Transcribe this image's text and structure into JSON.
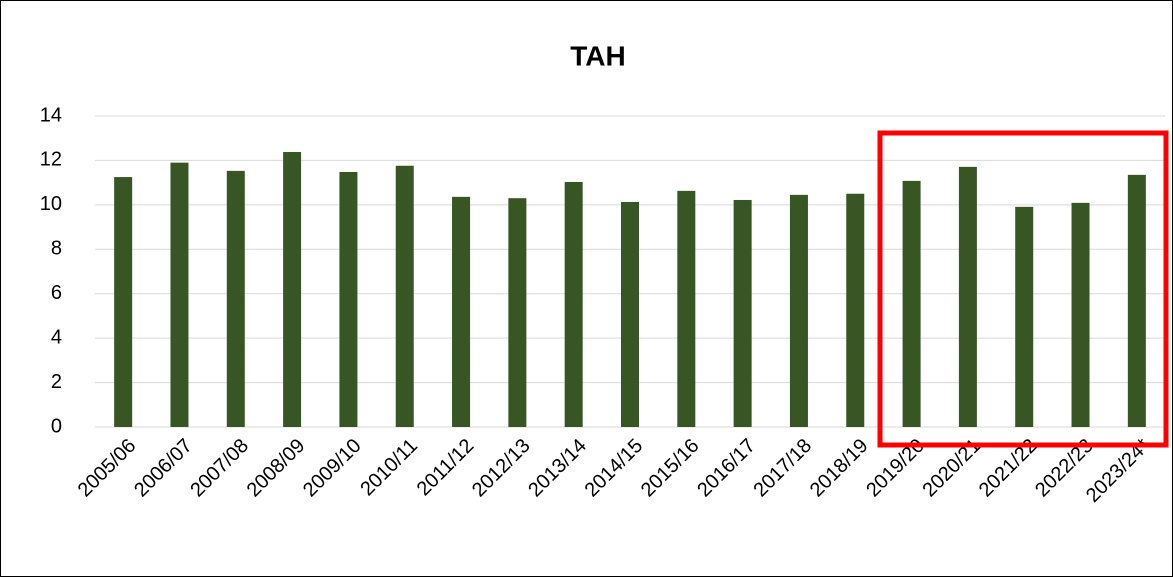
{
  "chart_data": {
    "type": "bar",
    "title": "TAH",
    "categories": [
      "2005/06",
      "2006/07",
      "2007/08",
      "2008/09",
      "2009/10",
      "2010/11",
      "2011/12",
      "2012/13",
      "2013/14",
      "2014/15",
      "2015/16",
      "2016/17",
      "2017/18",
      "2018/19",
      "2019/20",
      "2020/21",
      "2021/22",
      "2022/23",
      "2023/24*"
    ],
    "values": [
      11.25,
      11.9,
      11.53,
      12.38,
      11.48,
      11.76,
      10.36,
      10.3,
      11.03,
      10.13,
      10.63,
      10.22,
      10.45,
      10.5,
      11.08,
      11.71,
      9.91,
      10.09,
      11.35
    ],
    "color": "#375623",
    "ylim": [
      0,
      14
    ],
    "yticks": [
      0,
      2,
      4,
      6,
      8,
      10,
      12,
      14
    ],
    "grid": true
  }
}
